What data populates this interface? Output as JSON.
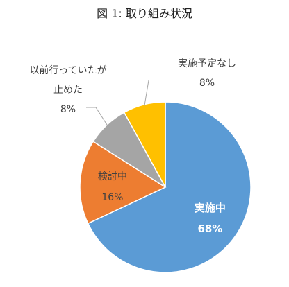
{
  "chart_data": {
    "type": "pie",
    "title": "図 1:  取り組み状況",
    "slices": [
      {
        "label": "実施中",
        "value": 68,
        "value_label": "68%",
        "color": "#5B9BD5",
        "label_color": "#ffffff",
        "label_position": "inside"
      },
      {
        "label": "検討中",
        "value": 16,
        "value_label": "16%",
        "color": "#ED7D31",
        "label_color": "#404040",
        "label_position": "inside"
      },
      {
        "label": "以前行っていたが\n止めた",
        "value": 8,
        "value_label": "8%",
        "color": "#A5A5A5",
        "label_color": "#404040",
        "label_position": "outside-left"
      },
      {
        "label": "実施予定なし",
        "value": 8,
        "value_label": "8%",
        "color": "#FFC000",
        "label_color": "#404040",
        "label_position": "outside-top"
      }
    ],
    "start_angle_deg": 0,
    "direction": "clockwise",
    "legend": "none"
  }
}
